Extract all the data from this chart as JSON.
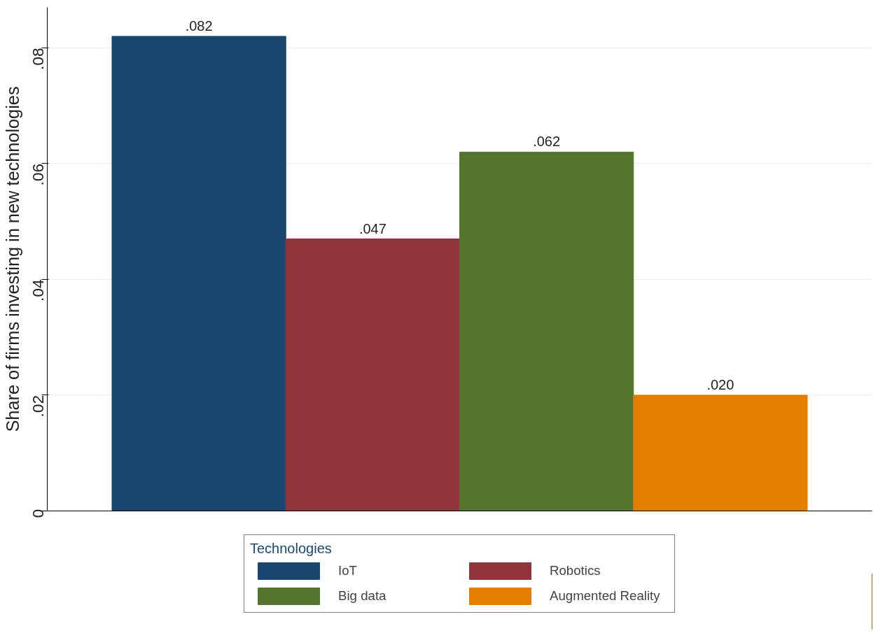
{
  "chart_data": {
    "type": "bar",
    "ylabel": "Share of firms investing in new technologies",
    "legend_title": "Technologies",
    "categories": [
      null
    ],
    "series": [
      {
        "name": "IoT",
        "color": "#1a476f",
        "values": [
          0.082
        ],
        "value_labels": [
          ".082"
        ]
      },
      {
        "name": "Robotics",
        "color": "#90353b",
        "values": [
          0.047
        ],
        "value_labels": [
          ".047"
        ]
      },
      {
        "name": "Big data",
        "color": "#55752f",
        "values": [
          0.062
        ],
        "value_labels": [
          ".062"
        ]
      },
      {
        "name": "Augmented Reality",
        "color": "#e37e00",
        "values": [
          0.02
        ],
        "value_labels": [
          ".020"
        ]
      }
    ],
    "ylim": [
      0,
      0.087
    ],
    "yticks": [
      0,
      {
        "value": 0.02,
        "label": ".02"
      },
      {
        "value": 0.04,
        "label": ".04"
      },
      {
        "value": 0.06,
        "label": ".06"
      },
      {
        "value": 0.08,
        "label": ".08"
      }
    ],
    "grid": "y",
    "legend": "bottom",
    "tick_labels": "y"
  }
}
